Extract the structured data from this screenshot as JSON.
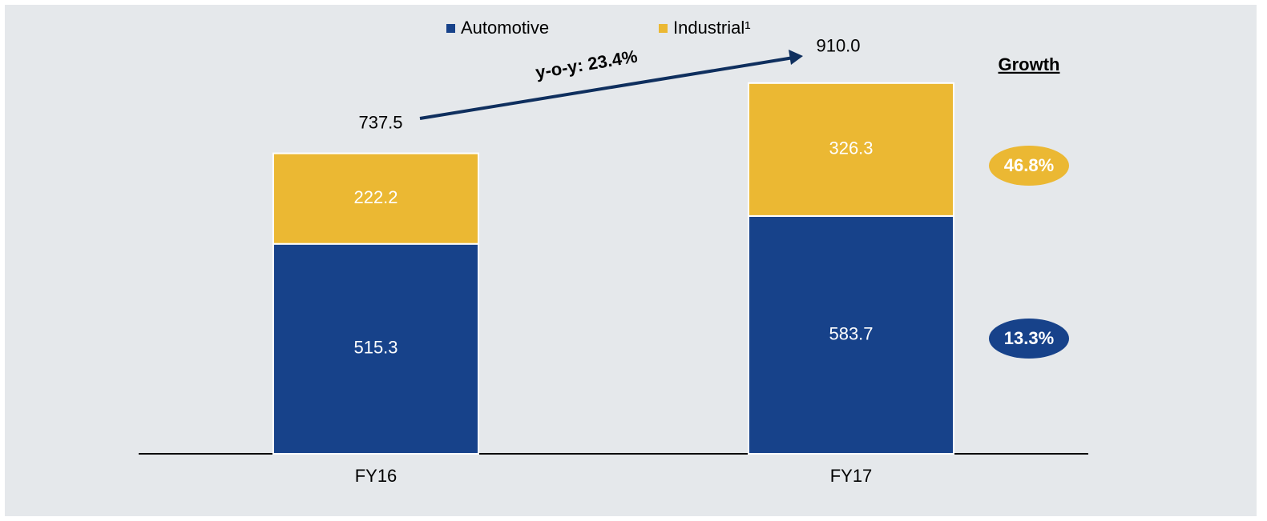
{
  "chart_data": {
    "type": "stacked_bar",
    "categories": [
      "FY16",
      "FY17"
    ],
    "series": [
      {
        "name": "Automotive",
        "color": "#17428a",
        "values": [
          515.3,
          583.7
        ]
      },
      {
        "name": "Industrial¹",
        "color": "#ebb833",
        "values": [
          222.2,
          326.3
        ]
      }
    ],
    "totals": {
      "values": [
        737.5,
        910.0
      ],
      "value_labels": [
        "737.5",
        "910.0"
      ]
    },
    "annotation": "y-o-y: 23.4%",
    "growth": {
      "title": "Growth",
      "values": [
        13.3,
        46.8
      ],
      "value_labels": [
        "13.3%",
        "46.8%"
      ]
    },
    "ylim": [
      0,
      1000
    ]
  }
}
